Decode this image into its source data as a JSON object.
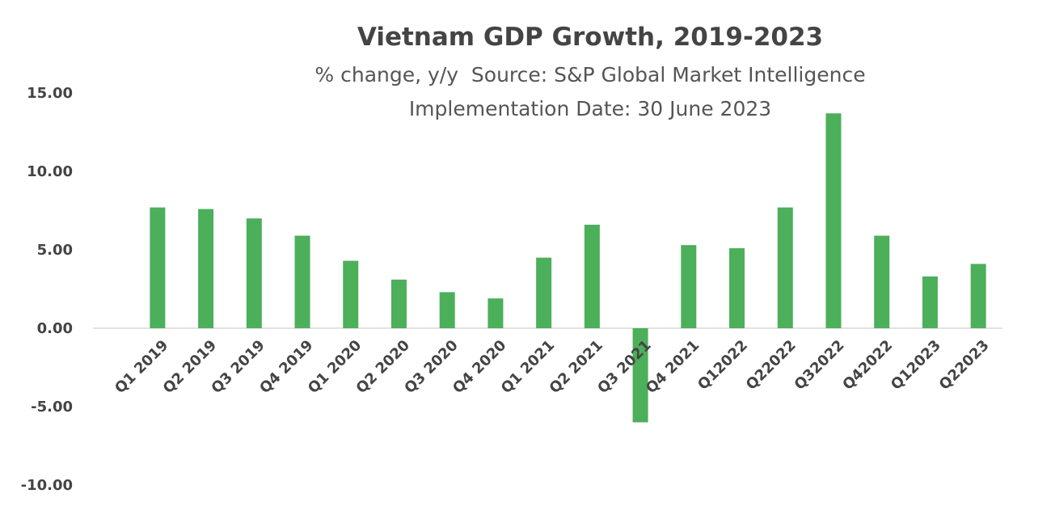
{
  "chart_data": {
    "type": "bar",
    "title": "Vietnam GDP Growth, 2019-2023",
    "subtitle": "% change, y/y  Source: S&P Global Market Intelligence",
    "subtitle2": "Implementation Date: 30 June 2023",
    "xlabel": "",
    "ylabel": "",
    "ylim": [
      -10,
      15
    ],
    "yticks": [
      "15.00",
      "10.00",
      "5.00",
      "0.00",
      "-5.00",
      "-10.00"
    ],
    "grid": false,
    "color": "#4CAF5A",
    "categories": [
      "Q1 2019",
      "Q2 2019",
      "Q3 2019",
      "Q4 2019",
      "Q1 2020",
      "Q2 2020",
      "Q3 2020",
      "Q4 2020",
      "Q1 2021",
      "Q2 2021",
      "Q3 2021",
      "Q4 2021",
      "Q12022",
      "Q22022",
      "Q32022",
      "Q42022",
      "Q12023",
      "Q22023"
    ],
    "values": [
      7.7,
      7.6,
      7.0,
      5.9,
      4.3,
      3.1,
      2.3,
      1.9,
      4.5,
      6.6,
      -6.0,
      5.3,
      5.1,
      7.7,
      13.7,
      5.9,
      3.3,
      4.1
    ]
  }
}
